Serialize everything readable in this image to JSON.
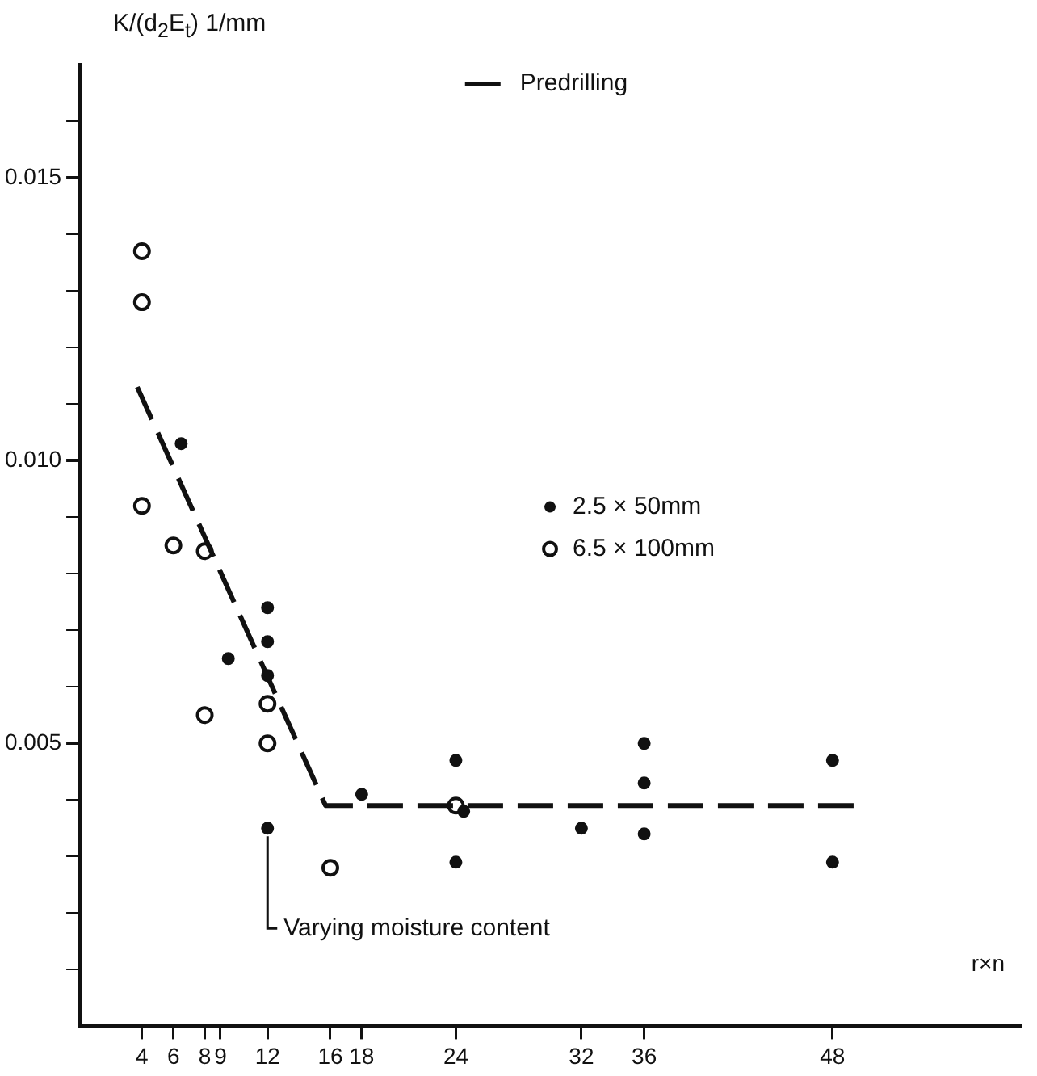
{
  "chart_data": {
    "type": "scatter",
    "xlabel": "r×n",
    "ylabel": "K/(d$_{2}$E$_{t}$)   1/mm",
    "xlim": [
      0,
      60
    ],
    "ylim": [
      0,
      0.017
    ],
    "xticks": [
      4,
      6,
      8,
      9,
      12,
      16,
      18,
      24,
      32,
      36,
      48
    ],
    "yticks": [
      {
        "value": 0.001,
        "label": null
      },
      {
        "value": 0.002,
        "label": null
      },
      {
        "value": 0.003,
        "label": null
      },
      {
        "value": 0.004,
        "label": null
      },
      {
        "value": 0.005,
        "label": "0.005"
      },
      {
        "value": 0.006,
        "label": null
      },
      {
        "value": 0.007,
        "label": null
      },
      {
        "value": 0.008,
        "label": null
      },
      {
        "value": 0.009,
        "label": null
      },
      {
        "value": 0.01,
        "label": "0.010"
      },
      {
        "value": 0.011,
        "label": null
      },
      {
        "value": 0.012,
        "label": null
      },
      {
        "value": 0.013,
        "label": null
      },
      {
        "value": 0.014,
        "label": null
      },
      {
        "value": 0.015,
        "label": "0.015"
      },
      {
        "value": 0.016,
        "label": null
      }
    ],
    "grid": false,
    "legend": "top right",
    "marker": "circle",
    "series": [
      {
        "name": "Predrilling",
        "type": "line",
        "line_style": "dashed",
        "marker": "none",
        "color": "#111111",
        "x": [
          3.7,
          15.7,
          49.5
        ],
        "values": [
          0.0113,
          0.0039,
          0.0039
        ]
      },
      {
        "name": "2.5 × 50mm",
        "type": "scatter",
        "color": "#111111",
        "x": [
          6.5,
          9.5,
          12,
          12,
          12,
          12,
          18,
          24,
          24.5,
          24,
          32,
          36,
          36,
          36,
          48,
          48
        ],
        "values": [
          0.0103,
          0.0065,
          0.0074,
          0.0068,
          0.0062,
          0.0035,
          0.0041,
          0.0047,
          0.0038,
          0.0029,
          0.0035,
          0.005,
          0.0043,
          0.0034,
          0.0047,
          0.0029
        ]
      },
      {
        "name": "6.5 × 100mm",
        "type": "scatter",
        "color": "#111111",
        "x": [
          4,
          4,
          4,
          6,
          8,
          8,
          12,
          12,
          16,
          24
        ],
        "values": [
          0.0137,
          0.0128,
          0.0092,
          0.0085,
          0.0084,
          0.0055,
          0.0057,
          0.005,
          0.0028,
          0.0039
        ]
      }
    ],
    "annotations": [
      {
        "text": "Varying moisture content",
        "x": 12,
        "y": 0.0035
      }
    ]
  }
}
